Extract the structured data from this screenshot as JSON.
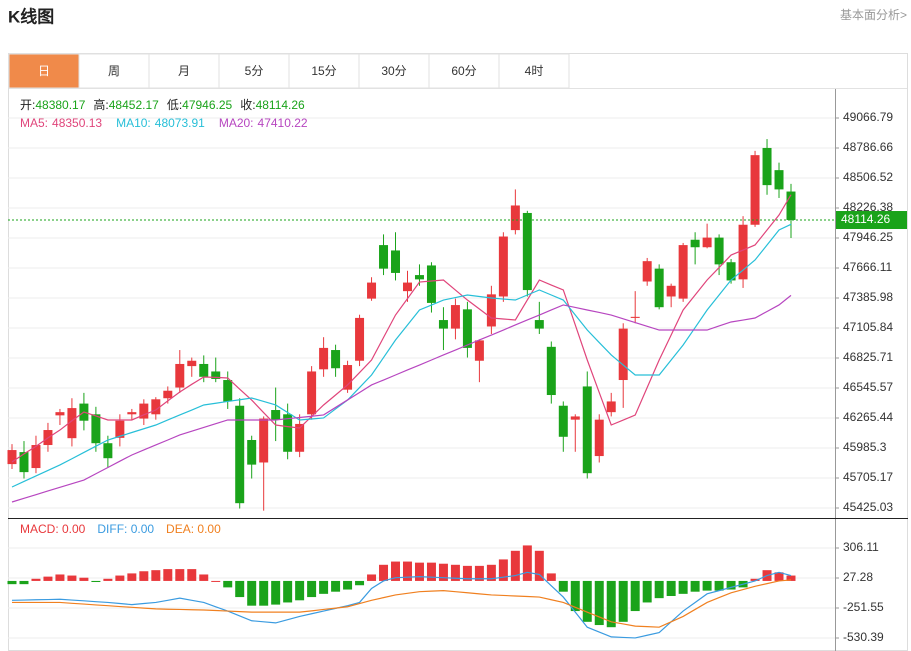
{
  "header": {
    "title": "K线图",
    "link": "基本面分析>"
  },
  "tabs": {
    "items": [
      "日",
      "周",
      "月",
      "5分",
      "15分",
      "30分",
      "60分",
      "4时"
    ],
    "active": 0
  },
  "chart_data": [
    {
      "type": "candlestick",
      "up_color": "#e8383c",
      "down_color": "#1aa31a",
      "ohlc_labels": [
        "开:",
        "高:",
        "低:",
        "收:"
      ],
      "open": [
        45835,
        45947,
        45798,
        46013,
        46290,
        46077,
        46400,
        46300,
        46030,
        46080,
        46300,
        46260,
        46300,
        46450,
        46550,
        46750,
        46770,
        46700,
        46620,
        46380,
        46060,
        45850,
        46340,
        46300,
        45950,
        46300,
        46720,
        46900,
        46530,
        46800,
        47380,
        47880,
        47830,
        47450,
        47600,
        47690,
        47180,
        47100,
        47280,
        46800,
        47120,
        47400,
        48020,
        48180,
        47180,
        46930,
        46380,
        46250,
        46560,
        45910,
        46320,
        46620,
        47200,
        47540,
        47660,
        47400,
        47380,
        47930,
        47860,
        47950,
        47720,
        47560,
        48070,
        48787,
        48580,
        48380.17
      ],
      "high": [
        46022,
        46050,
        46100,
        46220,
        46350,
        46450,
        46500,
        46370,
        46100,
        46300,
        46350,
        46440,
        46460,
        46560,
        46900,
        46830,
        46850,
        46830,
        46700,
        46450,
        46100,
        46280,
        46550,
        46400,
        46300,
        46750,
        47020,
        46950,
        46800,
        47230,
        47580,
        47980,
        48000,
        47640,
        47700,
        47720,
        47300,
        47380,
        47350,
        47000,
        47500,
        48000,
        48400,
        48200,
        47350,
        46980,
        46420,
        46300,
        46700,
        46300,
        46500,
        47150,
        47450,
        47760,
        47700,
        47520,
        47900,
        48000,
        48080,
        47980,
        47750,
        48150,
        48760,
        48870,
        48650,
        48452.17
      ],
      "low": [
        45789,
        45700,
        45750,
        45950,
        46200,
        46000,
        46150,
        45950,
        45800,
        46000,
        46250,
        46200,
        46250,
        46400,
        46500,
        46650,
        46600,
        46600,
        46350,
        45420,
        45700,
        45400,
        46050,
        45880,
        45900,
        46250,
        46650,
        46650,
        46500,
        46750,
        47360,
        47600,
        47550,
        47350,
        47500,
        47250,
        46900,
        47000,
        46830,
        46600,
        47050,
        47350,
        47980,
        47400,
        47050,
        46400,
        45950,
        45950,
        45700,
        45850,
        46280,
        46360,
        47150,
        47500,
        47280,
        47300,
        47350,
        47700,
        47850,
        47600,
        47520,
        47480,
        48050,
        48350,
        48320,
        47946.25
      ],
      "close": [
        45966,
        45760,
        46013,
        46153,
        46320,
        46358,
        46240,
        46030,
        45890,
        46240,
        46320,
        46400,
        46440,
        46520,
        46770,
        46800,
        46650,
        46630,
        46420,
        45470,
        45830,
        46260,
        46250,
        45950,
        46210,
        46700,
        46920,
        46730,
        46760,
        47200,
        47530,
        47660,
        47620,
        47530,
        47560,
        47340,
        47100,
        47320,
        46920,
        46990,
        47420,
        47960,
        48250,
        47460,
        47100,
        46480,
        46090,
        46280,
        45750,
        46250,
        46420,
        47100,
        47210,
        47730,
        47300,
        47500,
        47880,
        47860,
        47950,
        47700,
        47550,
        48070,
        48720,
        48440,
        48400,
        48114.26
      ],
      "series": [
        {
          "name": "MA5:",
          "color": "#e0457b",
          "values": [
            45854,
            45930,
            46000,
            46080,
            46153,
            46240,
            46321,
            46285,
            46247,
            46247,
            46247,
            46295,
            46340,
            46425,
            46508,
            46580,
            46648,
            46645,
            46639,
            46535,
            46433,
            46315,
            46200,
            46185,
            46172,
            46280,
            46387,
            46480,
            46574,
            46690,
            46807,
            47017,
            47227,
            47380,
            47535,
            47545,
            47554,
            47460,
            47367,
            47283,
            47199,
            47190,
            47181,
            47368,
            47554,
            47507,
            47461,
            47134,
            46807,
            46503,
            46200,
            46246,
            46293,
            46550,
            46807,
            47040,
            47274,
            47414,
            47554,
            47670,
            47787,
            47834,
            47881,
            48021,
            48161,
            48350.13
          ]
        },
        {
          "name": "MA10:",
          "color": "#27bfd8",
          "values": [
            45621,
            45673,
            45724,
            45776,
            45827,
            45885,
            45944,
            46002,
            46060,
            46095,
            46130,
            46165,
            46200,
            46247,
            46294,
            46340,
            46387,
            46403,
            46420,
            46436,
            46452,
            46420,
            46387,
            46317,
            46247,
            46256,
            46266,
            46350,
            46433,
            46550,
            46667,
            46830,
            46994,
            47134,
            47274,
            47320,
            47367,
            47390,
            47414,
            47400,
            47386,
            47376,
            47367,
            47414,
            47461,
            47414,
            47367,
            47227,
            47087,
            46970,
            46854,
            46760,
            46667,
            46667,
            46667,
            46807,
            46947,
            47110,
            47274,
            47414,
            47554,
            47647,
            47741,
            47881,
            48021,
            48073.91
          ]
        },
        {
          "name": "MA20:",
          "color": "#b746c0",
          "values": [
            45481,
            45515,
            45549,
            45584,
            45618,
            45652,
            45686,
            45745,
            45803,
            45862,
            45920,
            45967,
            46014,
            46060,
            46107,
            46142,
            46177,
            46212,
            46247,
            46247,
            46247,
            46247,
            46247,
            46259,
            46270,
            46282,
            46294,
            46364,
            46434,
            46504,
            46574,
            46620,
            46667,
            46714,
            46760,
            46807,
            46854,
            46900,
            46947,
            46994,
            47040,
            47087,
            47134,
            47181,
            47227,
            47274,
            47321,
            47298,
            47274,
            47251,
            47227,
            47192,
            47157,
            47122,
            47087,
            47087,
            47087,
            47087,
            47087,
            47125,
            47162,
            47180,
            47199,
            47260,
            47321,
            47410.22
          ]
        }
      ],
      "ylim": [
        45331.6,
        49309.6
      ],
      "yticks": [
        49066.79,
        48786.66,
        48506.52,
        48226.38,
        47946.25,
        47666.11,
        47385.98,
        47105.84,
        46825.71,
        46545.57,
        46265.44,
        45985.3,
        45705.17,
        45425.03
      ],
      "grid": true
    },
    {
      "type": "macd",
      "legend_labels": [
        "MACD: 0.00",
        "DIFF: 0.00",
        "DEA: 0.00"
      ],
      "series": [
        {
          "color": "#e8383c",
          "values": [
            -30,
            -30,
            20,
            40,
            60,
            50,
            30,
            -10,
            20,
            50,
            70,
            90,
            100,
            110,
            110,
            110,
            60,
            0,
            -60,
            -150,
            -230,
            -230,
            -220,
            -200,
            -180,
            -150,
            -120,
            -100,
            -80,
            -40,
            60,
            150,
            180,
            180,
            170,
            170,
            160,
            150,
            140,
            140,
            150,
            200,
            280,
            330,
            280,
            70,
            -100,
            -280,
            -380,
            -410,
            -430,
            -380,
            -280,
            -200,
            -160,
            -140,
            -120,
            -100,
            -90,
            -90,
            -80,
            -60,
            20,
            100,
            80,
            50
          ]
        },
        {
          "color": "#3a9be0",
          "values": [
            -180,
            -178,
            -175,
            -173,
            -170,
            -178,
            -185,
            -193,
            -200,
            -210,
            -220,
            -210,
            -200,
            -180,
            -160,
            -180,
            -200,
            -240,
            -280,
            -325,
            -370,
            -380,
            -390,
            -360,
            -330,
            -305,
            -280,
            -255,
            -230,
            -200,
            -70,
            0,
            30,
            35,
            40,
            35,
            30,
            25,
            20,
            20,
            20,
            35,
            50,
            80,
            60,
            -45,
            -150,
            -290,
            -430,
            -475,
            -520,
            -525,
            -530,
            -505,
            -480,
            -380,
            -280,
            -200,
            -120,
            -90,
            -60,
            -30,
            0,
            50,
            80,
            50
          ]
        },
        {
          "color": "#f08020",
          "values": [
            -200,
            -200,
            -200,
            -200,
            -200,
            -208,
            -215,
            -223,
            -230,
            -238,
            -245,
            -253,
            -260,
            -263,
            -265,
            -268,
            -270,
            -275,
            -280,
            -285,
            -290,
            -290,
            -290,
            -290,
            -290,
            -278,
            -265,
            -253,
            -240,
            -210,
            -180,
            -155,
            -130,
            -115,
            -100,
            -95,
            -90,
            -100,
            -110,
            -120,
            -130,
            -135,
            -140,
            -145,
            -150,
            -175,
            -200,
            -245,
            -290,
            -335,
            -380,
            -400,
            -420,
            -425,
            -430,
            -380,
            -330,
            -265,
            -200,
            -155,
            -110,
            -80,
            -50,
            -25,
            0,
            10
          ]
        }
      ],
      "down_color": "#1aa31a",
      "ylim": [
        -651.2,
        584.9
      ],
      "yticks": [
        306.11,
        27.28,
        -251.55,
        -530.39
      ],
      "grid": true
    }
  ]
}
